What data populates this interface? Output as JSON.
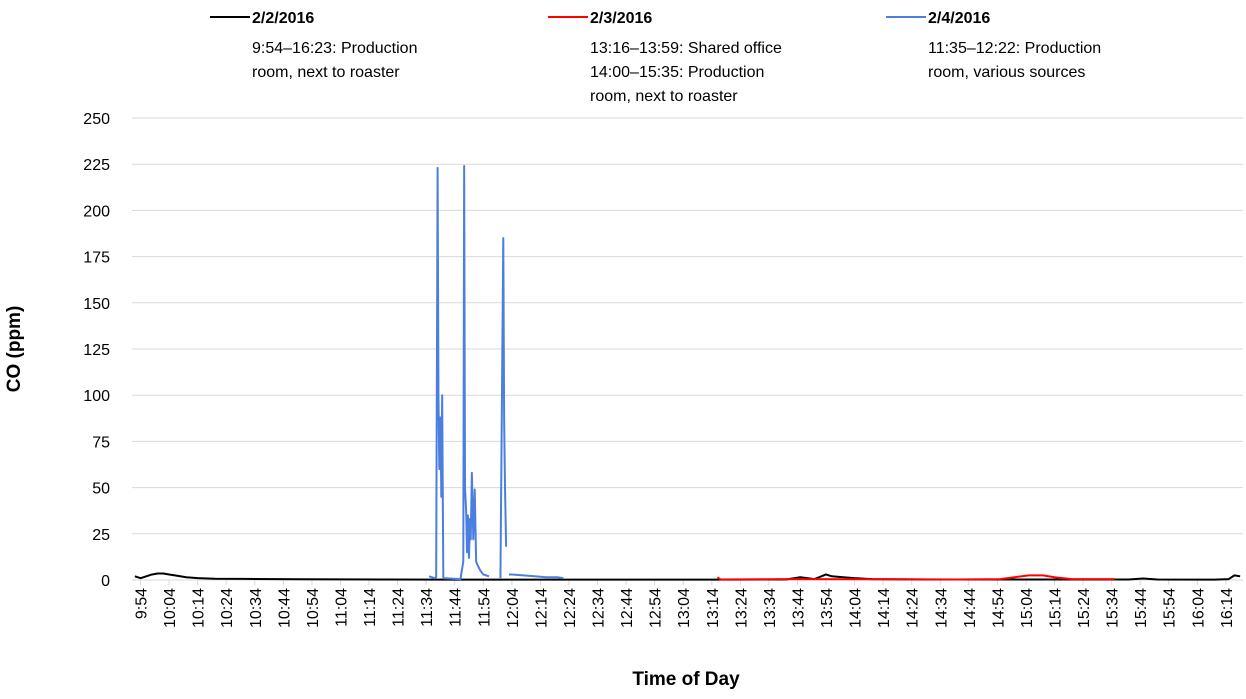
{
  "chart_data": {
    "type": "line",
    "x_label": "Time of Day",
    "y_label": "CO (ppm)",
    "xlim": [
      591,
      980
    ],
    "ylim": [
      0,
      250
    ],
    "yticks": [
      0,
      25,
      50,
      75,
      100,
      125,
      150,
      175,
      200,
      225,
      250
    ],
    "xticks": [
      {
        "value": 594,
        "label": "9:54"
      },
      {
        "value": 604,
        "label": "10:04"
      },
      {
        "value": 614,
        "label": "10:14"
      },
      {
        "value": 624,
        "label": "10:24"
      },
      {
        "value": 634,
        "label": "10:34"
      },
      {
        "value": 644,
        "label": "10:44"
      },
      {
        "value": 654,
        "label": "10:54"
      },
      {
        "value": 664,
        "label": "11:04"
      },
      {
        "value": 674,
        "label": "11:14"
      },
      {
        "value": 684,
        "label": "11:24"
      },
      {
        "value": 694,
        "label": "11:34"
      },
      {
        "value": 704,
        "label": "11:44"
      },
      {
        "value": 714,
        "label": "11:54"
      },
      {
        "value": 724,
        "label": "12:04"
      },
      {
        "value": 734,
        "label": "12:14"
      },
      {
        "value": 744,
        "label": "12:24"
      },
      {
        "value": 754,
        "label": "12:34"
      },
      {
        "value": 764,
        "label": "12:44"
      },
      {
        "value": 774,
        "label": "12:54"
      },
      {
        "value": 784,
        "label": "13:04"
      },
      {
        "value": 794,
        "label": "13:14"
      },
      {
        "value": 804,
        "label": "13:24"
      },
      {
        "value": 814,
        "label": "13:34"
      },
      {
        "value": 824,
        "label": "13:44"
      },
      {
        "value": 834,
        "label": "13:54"
      },
      {
        "value": 844,
        "label": "14:04"
      },
      {
        "value": 854,
        "label": "14:14"
      },
      {
        "value": 864,
        "label": "14:24"
      },
      {
        "value": 874,
        "label": "14:34"
      },
      {
        "value": 884,
        "label": "14:44"
      },
      {
        "value": 894,
        "label": "14:54"
      },
      {
        "value": 904,
        "label": "15:04"
      },
      {
        "value": 914,
        "label": "15:14"
      },
      {
        "value": 924,
        "label": "15:24"
      },
      {
        "value": 934,
        "label": "15:34"
      },
      {
        "value": 944,
        "label": "15:44"
      },
      {
        "value": 954,
        "label": "15:54"
      },
      {
        "value": 964,
        "label": "16:04"
      },
      {
        "value": 974,
        "label": "16:14"
      }
    ],
    "grid": true,
    "series": [
      {
        "name": "2/2/2016",
        "color": "#000000",
        "description": [
          "9:54–16:23:  Production",
          "room, next to roaster"
        ],
        "x": [
          592,
          594,
          596,
          598,
          600,
          602,
          604,
          606,
          610,
          614,
          620,
          630,
          650,
          680,
          700,
          720,
          760,
          800,
          820,
          825,
          830,
          834,
          836,
          840,
          844,
          850,
          870,
          900,
          940,
          945,
          950,
          970,
          975,
          977,
          979
        ],
        "values": [
          2,
          1,
          2,
          3,
          3.5,
          3.5,
          3,
          2.5,
          1.5,
          1,
          0.7,
          0.6,
          0.4,
          0.3,
          0.2,
          0.2,
          0.2,
          0.2,
          0.3,
          1.5,
          0.5,
          3,
          2,
          1.5,
          1,
          0.5,
          0.3,
          0.3,
          0.3,
          0.8,
          0.3,
          0.2,
          0.5,
          2.5,
          2
        ]
      },
      {
        "name": "2/3/2016",
        "color": "#ff0000",
        "description": [
          "13:16–13:59:  Shared office",
          "14:00–15:35:  Production",
          "room, next to roaster"
        ],
        "x": [
          796,
          797,
          820,
          850,
          880,
          895,
          900,
          905,
          910,
          914,
          920,
          935
        ],
        "values": [
          1.5,
          0.3,
          0.5,
          0.4,
          0.3,
          0.5,
          1.5,
          2.5,
          2.5,
          1.5,
          0.5,
          0.5
        ]
      },
      {
        "name": "2/4/2016",
        "color": "#4a7fe0",
        "description": [
          "11:35–12:22:  Production",
          "room, various sources"
        ],
        "x": [
          695,
          697,
          697.5,
          698,
          698.3,
          698.6,
          699,
          699.3,
          699.6,
          700,
          706,
          707,
          707.3,
          707.6,
          708,
          708.3,
          708.6,
          709,
          709.3,
          709.6,
          710,
          710.5,
          711,
          711.5,
          712,
          713,
          714,
          716,
          716.5,
          717.5,
          718,
          720,
          721,
          721.3,
          721.6,
          722,
          722.5,
          723,
          724,
          728,
          732,
          736,
          740,
          742
        ],
        "values": [
          2,
          1,
          1.5,
          223,
          100,
          60,
          88,
          45,
          100,
          1,
          0.5,
          10,
          224,
          50,
          37,
          15,
          35,
          12,
          33,
          22,
          58,
          22,
          49,
          10,
          8,
          5,
          3,
          2,
          null,
          4,
          null,
          1,
          185,
          87,
          50,
          18,
          null,
          3,
          3,
          2.5,
          2,
          1.5,
          1.5,
          1
        ]
      }
    ]
  }
}
